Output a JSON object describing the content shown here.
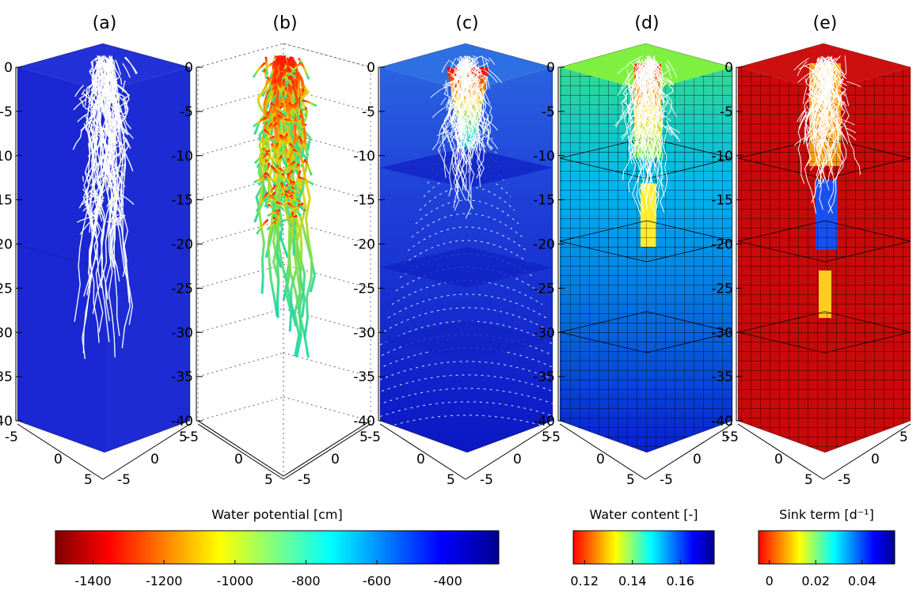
{
  "panels": [
    {
      "label": "(a)",
      "mode": "roots_blue"
    },
    {
      "label": "(b)",
      "mode": "roots_colored_grid"
    },
    {
      "label": "(c)",
      "mode": "potential_field"
    },
    {
      "label": "(d)",
      "mode": "water_content"
    },
    {
      "label": "(e)",
      "mode": "sink_term"
    }
  ],
  "z_ticks": [
    "0",
    "-5",
    "-10",
    "-15",
    "-20",
    "-25",
    "-30",
    "-35",
    "-40"
  ],
  "base_ticks": {
    "left_corner": "-5",
    "near_0": "0",
    "near_5": "5",
    "right_0": "0",
    "right_minus5": "-5",
    "right_5": "5"
  },
  "colorbars": [
    {
      "title": "Water potential [cm]",
      "ticks": [
        "-1400",
        "-1200",
        "-1000",
        "-800",
        "-600",
        "-400"
      ]
    },
    {
      "title": "Water content [-]",
      "ticks": [
        "0.12",
        "0.14",
        "0.16"
      ]
    },
    {
      "title": "Sink term [d⁻¹]",
      "ticks": [
        "0",
        "0.02",
        "0.04"
      ]
    }
  ],
  "colors": {
    "soil_blue": "#1c2bd6",
    "root_white": "#ffffff"
  }
}
